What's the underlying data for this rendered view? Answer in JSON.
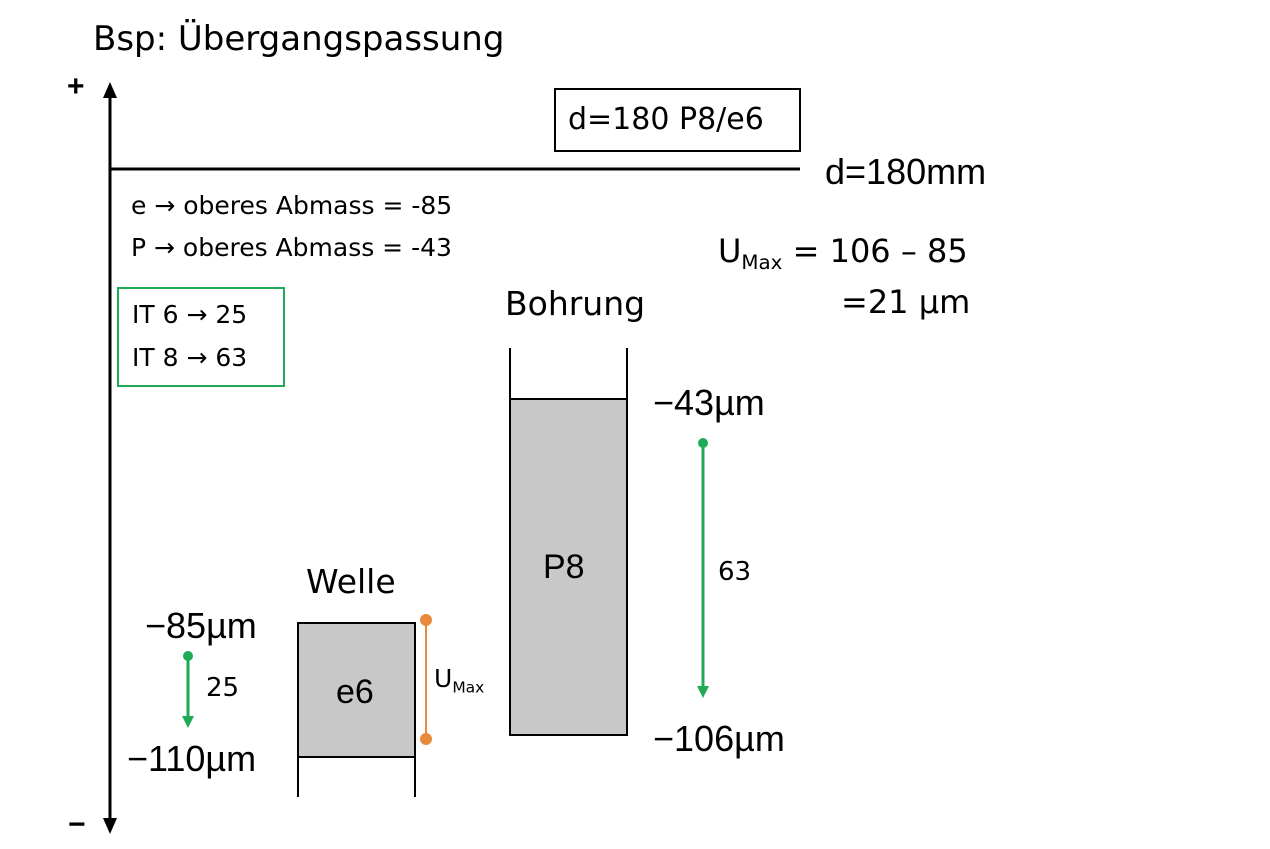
{
  "title": "Bsp: Übergangspassung",
  "axis": {
    "plus": "+",
    "minus": "−"
  },
  "spec_label": "d=180 P8/e6",
  "nominal_label": "d=180mm",
  "deviations": {
    "e_line": "e → oberes Abmass = -85",
    "p_line": "P → oberes Abmass = -43"
  },
  "tolerances": {
    "it6": "IT 6 → 25",
    "it8": "IT 8 → 63",
    "border_color": "#1faa55"
  },
  "umax_formula": {
    "u": "U",
    "sub": "Max",
    "rest": " = 106 – 85",
    "result": "=21 µm"
  },
  "bohrung": {
    "title": "Bohrung",
    "label": "P8",
    "upper": "−43µm",
    "lower": "−106µm",
    "tolerance_value": "63"
  },
  "welle": {
    "title": "Welle",
    "label": "e6",
    "upper": "−85µm",
    "lower": "−110µm",
    "tolerance_value": "25"
  },
  "umax_marker": {
    "u": "U",
    "sub": "Max"
  },
  "colors": {
    "fill": "#c8c8c8",
    "green": "#1faa55",
    "orange": "#e88a3c"
  }
}
